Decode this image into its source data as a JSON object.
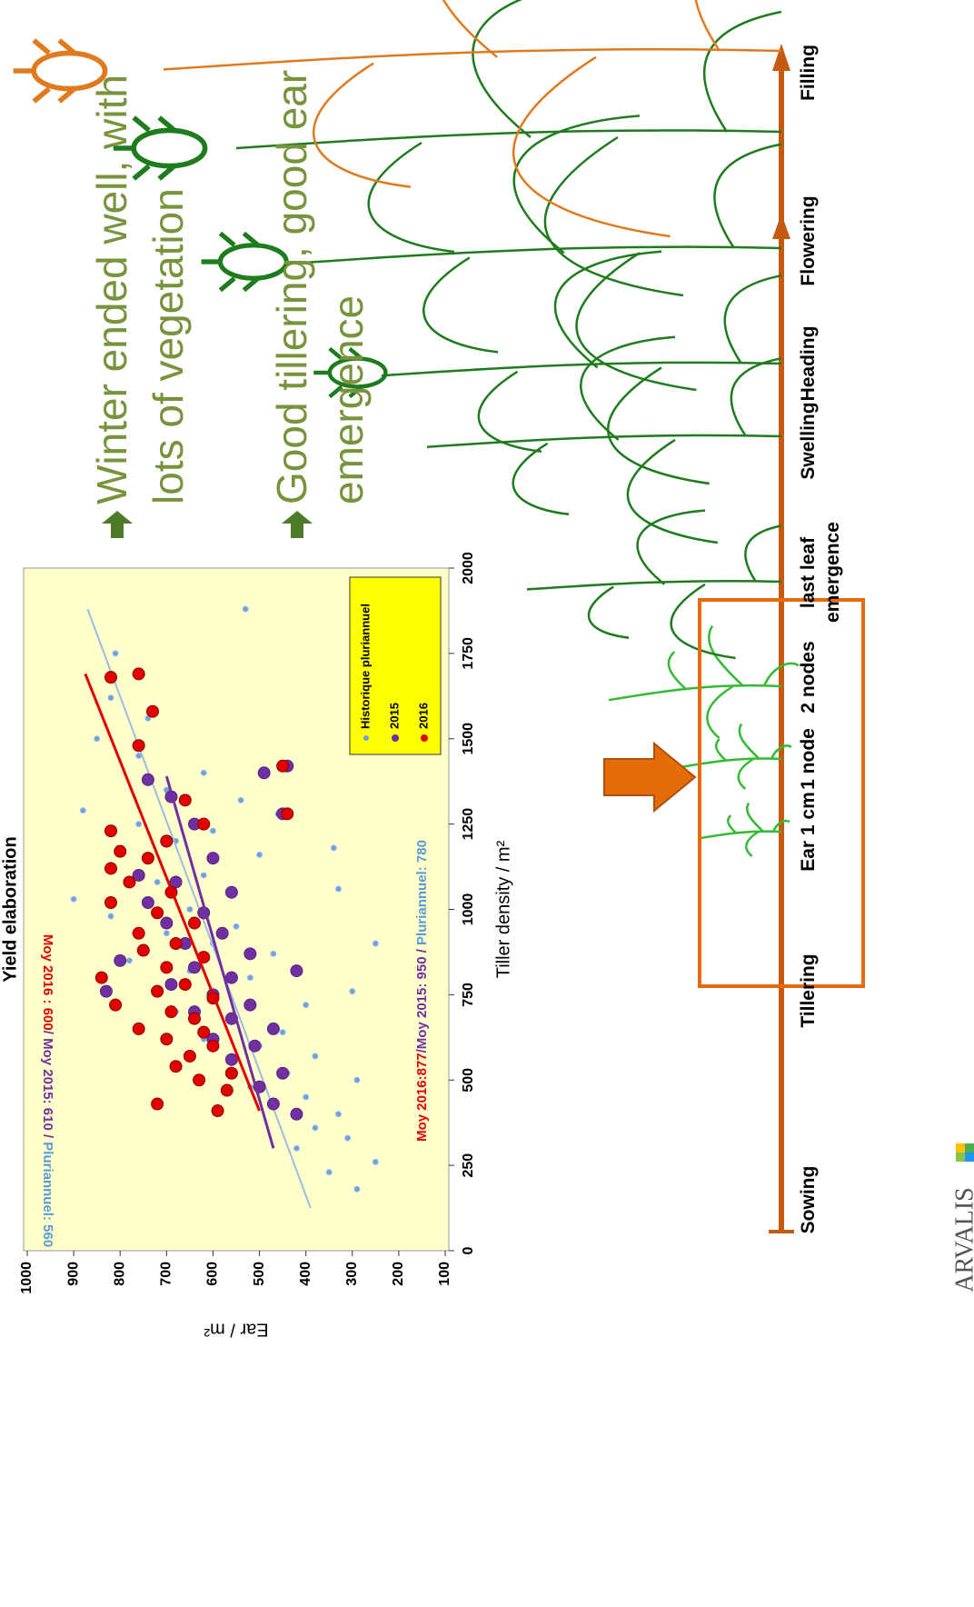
{
  "chart_data": {
    "type": "scatter",
    "title": "Yield elaboration",
    "x_label": "Tiller density / m²",
    "y_label": "Ear / m²",
    "xlim": [
      0,
      2000
    ],
    "xticks": [
      0,
      250,
      500,
      750,
      1000,
      1250,
      1500,
      1750,
      2000
    ],
    "ylim": [
      100,
      1000
    ],
    "yticks": [
      100,
      200,
      300,
      400,
      500,
      600,
      700,
      800,
      900,
      1000
    ],
    "legend": "lower right",
    "background": "#ffffcc",
    "series": [
      {
        "name": "Historique pluriannuel",
        "color": "#6fa0dc",
        "x": [
          180,
          230,
          260,
          300,
          330,
          360,
          400,
          420,
          450,
          480,
          500,
          520,
          550,
          570,
          600,
          620,
          640,
          670,
          700,
          720,
          750,
          770,
          800,
          820,
          850,
          870,
          900,
          930,
          950,
          980,
          1000,
          1030,
          1050,
          1080,
          1100,
          1130,
          1160,
          1200,
          1230,
          1250,
          1290,
          1320,
          1350,
          1400,
          1450,
          1500,
          1560,
          1620,
          1750,
          1880,
          1280,
          1180,
          1060,
          900,
          760
        ],
        "values": [
          290,
          350,
          250,
          420,
          310,
          380,
          330,
          470,
          400,
          520,
          290,
          440,
          560,
          380,
          500,
          620,
          450,
          560,
          680,
          400,
          600,
          720,
          520,
          650,
          780,
          470,
          600,
          700,
          550,
          820,
          650,
          900,
          560,
          720,
          620,
          820,
          500,
          680,
          600,
          760,
          880,
          540,
          700,
          620,
          760,
          850,
          740,
          820,
          810,
          530,
          460,
          340,
          330,
          250,
          300
        ],
        "trend": {
          "x": [
            125,
            1880
          ],
          "y": [
            390,
            870
          ]
        }
      },
      {
        "name": "2015",
        "color": "#7030a0",
        "x": [
          400,
          430,
          480,
          520,
          560,
          600,
          620,
          650,
          680,
          700,
          720,
          750,
          760,
          780,
          800,
          830,
          850,
          870,
          900,
          930,
          960,
          990,
          1020,
          1050,
          1080,
          1100,
          1150,
          1200,
          1250,
          1280,
          1330,
          1380,
          1420,
          1400,
          820
        ],
        "values": [
          420,
          470,
          500,
          450,
          560,
          510,
          600,
          470,
          560,
          640,
          520,
          600,
          830,
          690,
          560,
          640,
          800,
          520,
          660,
          580,
          700,
          620,
          740,
          560,
          680,
          760,
          600,
          700,
          640,
          450,
          690,
          740,
          440,
          490,
          420
        ],
        "trend": {
          "x": [
            300,
            1390
          ],
          "y": [
            470,
            700
          ]
        }
      },
      {
        "name": "2016",
        "color": "#e00000",
        "x": [
          410,
          430,
          470,
          500,
          520,
          540,
          570,
          600,
          620,
          640,
          650,
          680,
          700,
          720,
          740,
          760,
          780,
          800,
          830,
          860,
          880,
          900,
          930,
          960,
          990,
          1020,
          1050,
          1080,
          1120,
          1150,
          1170,
          1200,
          1230,
          1250,
          1280,
          1320,
          1420,
          1480,
          1580,
          1690,
          1680
        ],
        "values": [
          590,
          720,
          570,
          630,
          560,
          680,
          650,
          600,
          700,
          620,
          760,
          640,
          690,
          810,
          600,
          720,
          660,
          840,
          700,
          620,
          750,
          680,
          760,
          640,
          720,
          820,
          690,
          780,
          820,
          740,
          800,
          700,
          820,
          620,
          440,
          660,
          450,
          760,
          730,
          760,
          820
        ],
        "trend": {
          "x": [
            410,
            1690
          ],
          "y": [
            500,
            875
          ]
        }
      }
    ],
    "annotations": [
      {
        "parts": [
          "Moy 2016:877",
          "/Moy 2015: 950",
          " / ",
          "Pluriannuel: 780"
        ],
        "colors": [
          "#e00000",
          "#7030a0",
          "#7030a0",
          "#5b9bd5"
        ]
      },
      {
        "parts": [
          "Moy 2016 : 600",
          "/ Moy 2015: 610",
          " / ",
          "Pluriannuel: 560"
        ],
        "colors": [
          "#e00000",
          "#7030a0",
          "#7030a0",
          "#5b9bd5"
        ]
      }
    ]
  },
  "slide": {
    "bullets": [
      "Winter ended well, with lots of vegetation",
      "Good tillering, good ear emergence"
    ],
    "stages": [
      "Sowing",
      "Tillering",
      "Ear 1 cm",
      "1 node",
      "2 nodes",
      "last leaf emergence",
      "Swelling",
      "Heading",
      "Flowering",
      "Filling"
    ],
    "logo": "ARVALIS"
  }
}
